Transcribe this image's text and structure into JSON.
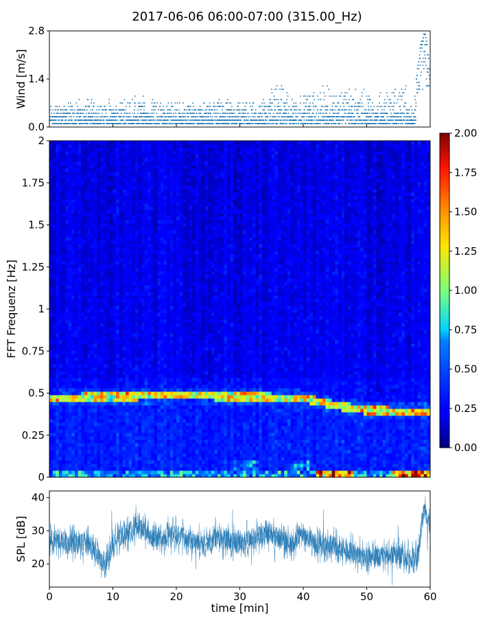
{
  "figure": {
    "title": "2017-06-06 06:00-07:00 (315.00_Hz)"
  },
  "chart_data": [
    {
      "type": "scatter",
      "name": "wind",
      "ylabel": "Wind [m/s]",
      "xlim": [
        0,
        60
      ],
      "ylim": [
        0,
        2.8
      ],
      "yticks": [
        "0.0",
        "1.4",
        "2.8"
      ],
      "color": "#1f77b4",
      "envelope": {
        "x": [
          0,
          5,
          10,
          15,
          20,
          25,
          30,
          33,
          36,
          39,
          42,
          45,
          48,
          51,
          54,
          56,
          57.5,
          58.5,
          59.2,
          60
        ],
        "max": [
          0.7,
          0.9,
          0.8,
          1.0,
          0.8,
          0.8,
          0.9,
          0.8,
          1.4,
          1.1,
          1.2,
          1.4,
          1.3,
          1.0,
          1.2,
          1.4,
          0.9,
          2.4,
          2.8,
          1.6
        ]
      }
    },
    {
      "type": "heatmap",
      "name": "spectrogram",
      "ylabel": "FFT Frequenz [Hz]",
      "xlim": [
        0,
        60
      ],
      "ylim": [
        0,
        2
      ],
      "yticks": [
        "0",
        "0.25",
        "0.5",
        "0.75",
        "1",
        "1.25",
        "1.5",
        "1.75",
        "2"
      ],
      "colorbar": {
        "min": 0,
        "max": 2,
        "ticks": [
          "0.00",
          "0.25",
          "0.50",
          "0.75",
          "1.00",
          "1.25",
          "1.50",
          "1.75",
          "2.00"
        ],
        "colormap": "jet"
      },
      "ridge": {
        "description_x": [
          0,
          10,
          20,
          30,
          40,
          45,
          50,
          55,
          60
        ],
        "freq_hz": [
          0.47,
          0.48,
          0.49,
          0.48,
          0.47,
          0.43,
          0.4,
          0.39,
          0.39
        ]
      }
    },
    {
      "type": "line",
      "name": "spl",
      "ylabel": "SPL [dB]",
      "xlabel": "time [min]",
      "xlim": [
        0,
        60
      ],
      "ylim": [
        13,
        42
      ],
      "xticks": [
        "0",
        "10",
        "20",
        "30",
        "40",
        "50",
        "60"
      ],
      "yticks": [
        "20",
        "30",
        "40"
      ],
      "color": "#1f77b4",
      "x": [
        0,
        2,
        4,
        6,
        7,
        8,
        9,
        10,
        12,
        14,
        16,
        18,
        20,
        22,
        24,
        26,
        28,
        30,
        32,
        34,
        36,
        38,
        40,
        42,
        44,
        46,
        48,
        50,
        52,
        54,
        56,
        58,
        59,
        60
      ],
      "mean": [
        27,
        27,
        26.5,
        26,
        25,
        21,
        21,
        26,
        29,
        32,
        28,
        28,
        29,
        27,
        26,
        28,
        27,
        26,
        28,
        29,
        28,
        26,
        29,
        26,
        26,
        25,
        23,
        22,
        22,
        23,
        22,
        22,
        36,
        31
      ]
    }
  ]
}
